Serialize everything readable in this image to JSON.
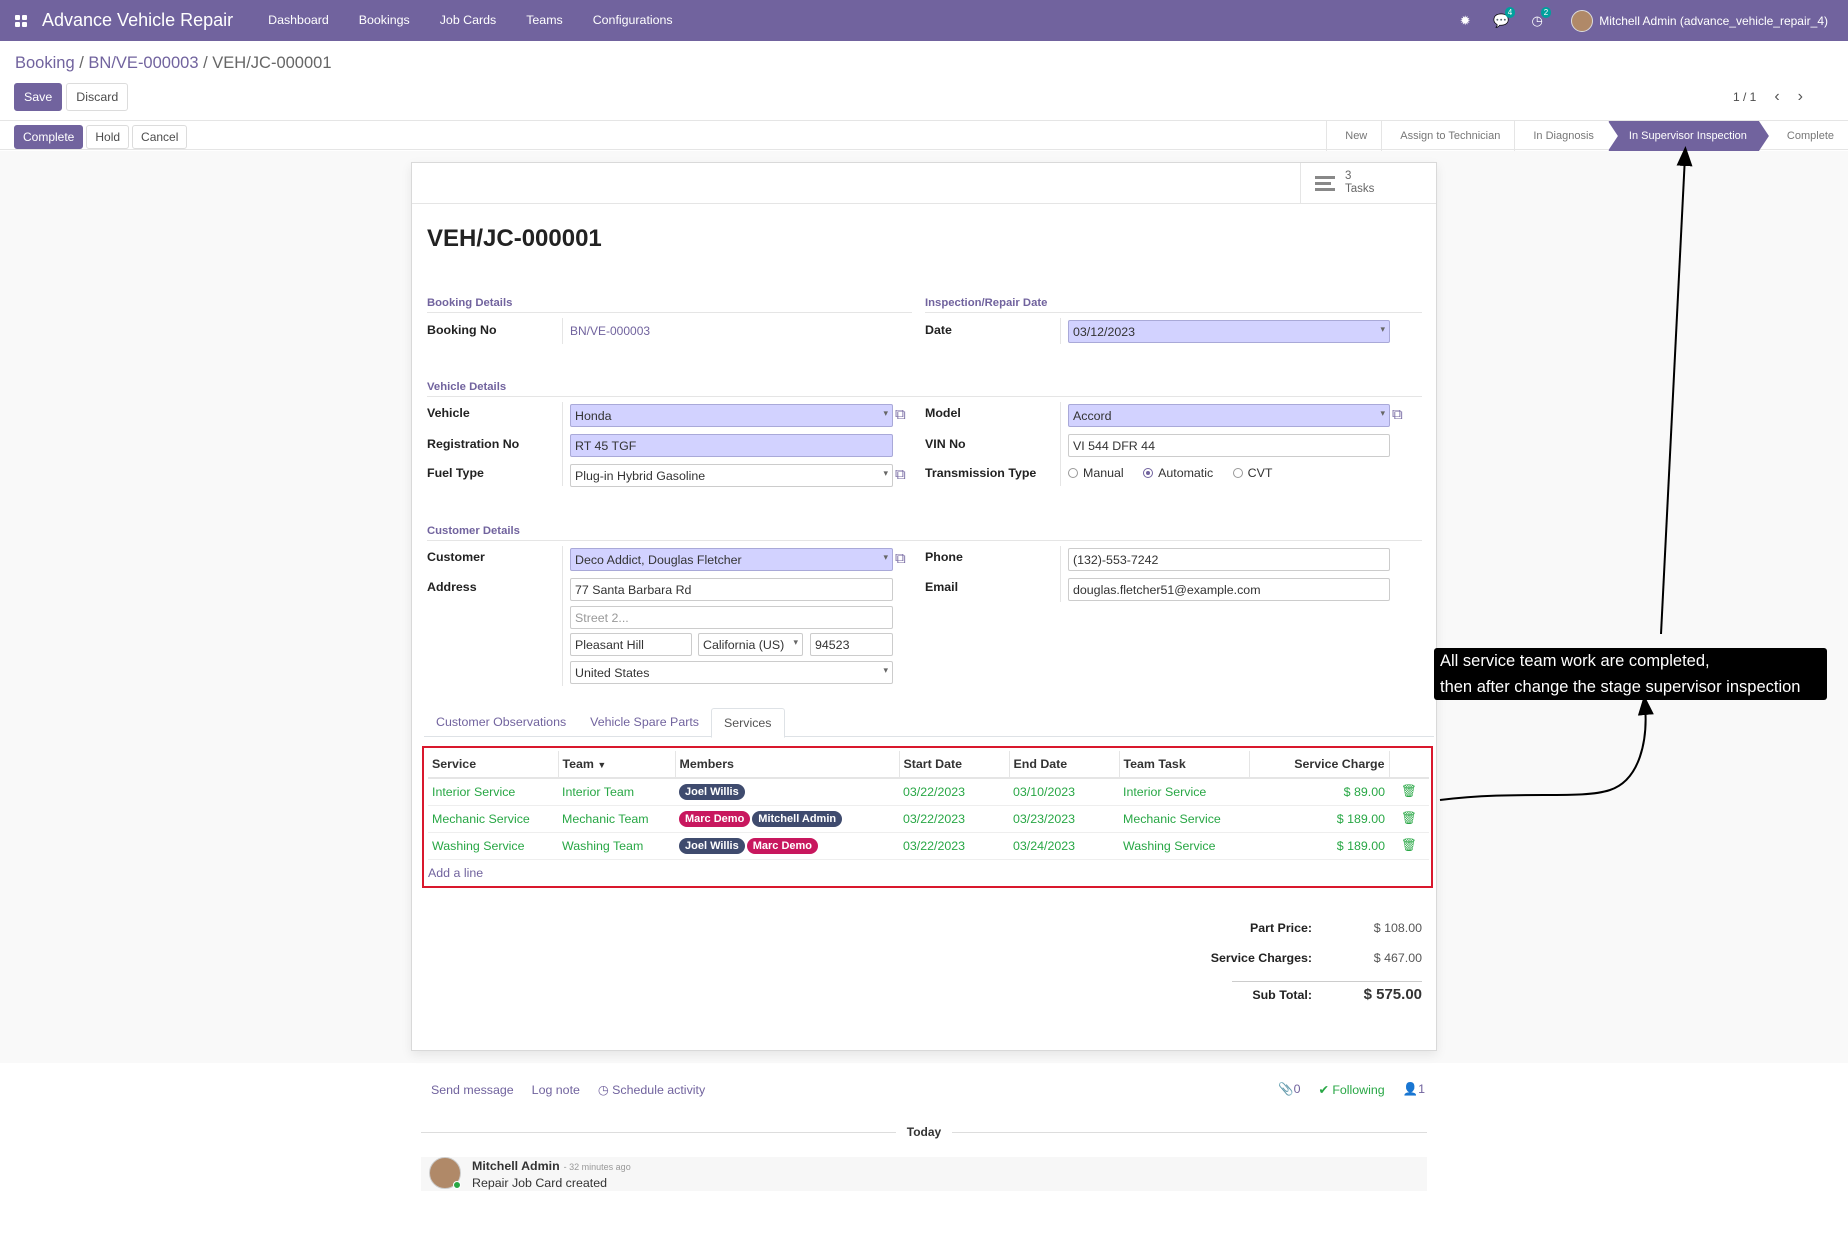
{
  "navbar": {
    "brand": "Advance Vehicle Repair",
    "menu": [
      "Dashboard",
      "Bookings",
      "Job Cards",
      "Teams",
      "Configurations"
    ],
    "messages_count": "4",
    "activities_count": "2",
    "user": "Mitchell Admin (advance_vehicle_repair_4)"
  },
  "breadcrumb": {
    "root": "Booking",
    "sep": "/",
    "booking": "BN/VE-000003",
    "current": "VEH/JC-000001"
  },
  "actions": {
    "save": "Save",
    "discard": "Discard"
  },
  "pager": {
    "value": "1 / 1"
  },
  "status_buttons": [
    "Complete",
    "Hold",
    "Cancel"
  ],
  "stages": [
    "New",
    "Assign to Technician",
    "In Diagnosis",
    "In Supervisor Inspection",
    "Complete"
  ],
  "active_stage": "In Supervisor Inspection",
  "smart_button": {
    "count": "3",
    "label": "Tasks"
  },
  "record": {
    "title": "VEH/JC-000001",
    "booking_section": "Booking Details",
    "booking_no_label": "Booking No",
    "booking_no": "BN/VE-000003",
    "inspection_section": "Inspection/Repair Date",
    "date_label": "Date",
    "date": "03/12/2023",
    "vehicle_section": "Vehicle Details",
    "vehicle_label": "Vehicle",
    "vehicle": "Honda",
    "model_label": "Model",
    "model": "Accord",
    "reg_label": "Registration No",
    "reg": "RT 45 TGF",
    "vin_label": "VIN No",
    "vin": "VI 544 DFR 44",
    "fuel_label": "Fuel Type",
    "fuel": "Plug-in Hybrid Gasoline",
    "trans_label": "Transmission Type",
    "trans_options": [
      "Manual",
      "Automatic",
      "CVT"
    ],
    "trans_selected": "Automatic",
    "customer_section": "Customer Details",
    "customer_label": "Customer",
    "customer": "Deco Addict, Douglas Fletcher",
    "phone_label": "Phone",
    "phone": "(132)-553-7242",
    "address_label": "Address",
    "street": "77 Santa Barbara Rd",
    "street2_placeholder": "Street 2...",
    "city": "Pleasant Hill",
    "state": "California (US)",
    "zip": "94523",
    "country": "United States",
    "email_label": "Email",
    "email": "douglas.fletcher51@example.com"
  },
  "tabs": [
    "Customer Observations",
    "Vehicle Spare Parts",
    "Services"
  ],
  "active_tab": "Services",
  "services_table": {
    "columns": [
      "Service",
      "Team",
      "Members",
      "Start Date",
      "End Date",
      "Team Task",
      "Service Charge"
    ],
    "rows": [
      {
        "service": "Interior Service",
        "team": "Interior Team",
        "members": [
          {
            "name": "Joel Willis",
            "color": "#3f4b6e"
          }
        ],
        "start": "03/22/2023",
        "end": "03/10/2023",
        "task": "Interior Service",
        "charge": "$ 89.00"
      },
      {
        "service": "Mechanic Service",
        "team": "Mechanic Team",
        "members": [
          {
            "name": "Marc Demo",
            "color": "#c8175e"
          },
          {
            "name": "Mitchell Admin",
            "color": "#3f4b6e"
          }
        ],
        "start": "03/22/2023",
        "end": "03/23/2023",
        "task": "Mechanic Service",
        "charge": "$ 189.00"
      },
      {
        "service": "Washing Service",
        "team": "Washing Team",
        "members": [
          {
            "name": "Joel Willis",
            "color": "#3f4b6e"
          },
          {
            "name": "Marc Demo",
            "color": "#c8175e"
          }
        ],
        "start": "03/22/2023",
        "end": "03/24/2023",
        "task": "Washing Service",
        "charge": "$ 189.00"
      }
    ],
    "add_line": "Add a line"
  },
  "totals": {
    "part_label": "Part Price:",
    "part": "$ 108.00",
    "service_label": "Service Charges:",
    "service": "$ 467.00",
    "sub_label": "Sub Total:",
    "sub": "$ 575.00"
  },
  "chatter": {
    "send": "Send message",
    "log": "Log note",
    "schedule": "Schedule activity",
    "attachments": "0",
    "following": "Following",
    "followers": "1",
    "today": "Today",
    "author": "Mitchell Admin",
    "time": "- 32 minutes ago",
    "body": "Repair Job Card created"
  },
  "callout": {
    "line1": "All service team work are completed,",
    "line2": "then after change the stage supervisor inspection"
  }
}
